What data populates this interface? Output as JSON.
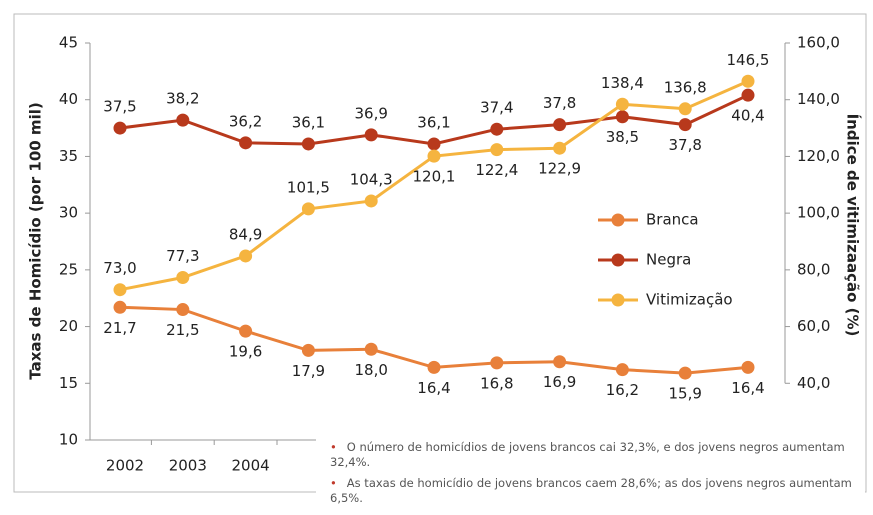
{
  "chart_data": {
    "type": "line",
    "y_label": "Taxas de Homicídio (por 100 mil)",
    "y2_label": "Índice de vitimizaação (%)",
    "categories": [
      "2002",
      "2003",
      "2004",
      null,
      null,
      null,
      null,
      null,
      null,
      null,
      null
    ],
    "ylim": [
      10,
      45
    ],
    "yticks": [
      10,
      15,
      20,
      25,
      30,
      35,
      40,
      45
    ],
    "y2lim": [
      20,
      160
    ],
    "y2ticks": [
      {
        "value": 40,
        "label": "40,0"
      },
      {
        "value": 60,
        "label": "60,0"
      },
      {
        "value": 80,
        "label": "80,0"
      },
      {
        "value": 100,
        "label": "100,0"
      },
      {
        "value": 120,
        "label": "120,0"
      },
      {
        "value": 140,
        "label": "140,0"
      },
      {
        "value": 160,
        "label": "160,0"
      }
    ],
    "legend": "right",
    "series": [
      {
        "name": "Branca",
        "color": "#e8803a",
        "values": [
          21.7,
          21.5,
          19.6,
          17.9,
          18.0,
          16.4,
          16.8,
          16.9,
          16.2,
          15.9,
          16.4
        ],
        "value_labels": [
          "21,7",
          "21,5",
          "19,6",
          "17,9",
          "18,0",
          "16,4",
          "16,8",
          "16,9",
          "16,2",
          "15,9",
          "16,4"
        ]
      },
      {
        "name": "Negra",
        "color": "#b8391c",
        "values": [
          37.5,
          38.2,
          36.2,
          36.1,
          36.9,
          36.1,
          37.4,
          37.8,
          38.5,
          37.8,
          40.4
        ],
        "value_labels": [
          "37,5",
          "38,2",
          "36,2",
          "36,1",
          "36,9",
          "36,1",
          "37,4",
          "37,8",
          "38,5",
          "37,8",
          "40,4"
        ]
      },
      {
        "name": "Vitimização",
        "color": "#f5b43f",
        "axis": "y2",
        "values": [
          73.0,
          77.3,
          84.9,
          101.5,
          104.3,
          120.1,
          122.4,
          122.9,
          138.4,
          136.8,
          146.5
        ],
        "value_labels": [
          "73,0",
          "77,3",
          "84,9",
          "101,5",
          "104,3",
          "120,1",
          "122,4",
          "122,9",
          "138,4",
          "136,8",
          "146,5"
        ]
      }
    ],
    "notes": [
      "O número de homicídios de jovens brancos cai 32,3%, e dos jovens negros aumentam 32,4%.",
      "As taxas de homicídio de jovens brancos caem 28,6%; as dos jovens negros aumentam 6,5%."
    ]
  }
}
